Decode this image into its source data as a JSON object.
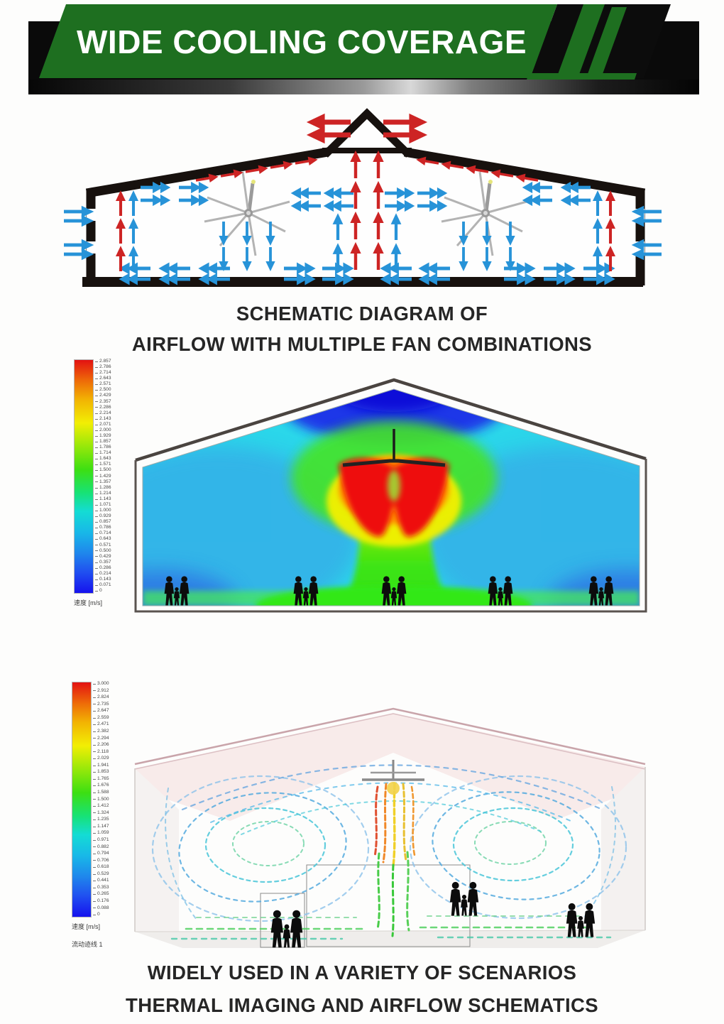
{
  "header": {
    "title": "WIDE COOLING COVERAGE"
  },
  "colors": {
    "green": "#1e6f20",
    "banner": "#0a0a0a",
    "warm": "#cd2424",
    "cool": "#2793d8",
    "caption": "#262626"
  },
  "captions": {
    "schematic_line1": "SCHEMATIC DIAGRAM OF",
    "schematic_line2": "AIRFLOW WITH MULTIPLE FAN COMBINATIONS",
    "footer_line1": "WIDELY USED IN A VARIETY OF SCENARIOS",
    "footer_line2": "THERMAL IMAGING AND AIRFLOW SCHEMATICS"
  },
  "cfd_thermal": {
    "description": "velocity contour plot of single HVLS fan in gabled building with people silhouettes",
    "legend": {
      "title": "速度 [m/s]",
      "unit": "m/s",
      "max": 2.857,
      "min": 0,
      "ticks": [
        "2.857",
        "2.786",
        "2.714",
        "2.643",
        "2.571",
        "2.500",
        "2.429",
        "2.357",
        "2.286",
        "2.214",
        "2.143",
        "2.071",
        "2.000",
        "1.929",
        "1.857",
        "1.786",
        "1.714",
        "1.643",
        "1.571",
        "1.500",
        "1.429",
        "1.357",
        "1.286",
        "1.214",
        "1.143",
        "1.071",
        "1.000",
        "0.929",
        "0.857",
        "0.786",
        "0.714",
        "0.643",
        "0.571",
        "0.500",
        "0.429",
        "0.357",
        "0.286",
        "0.214",
        "0.143",
        "0.071",
        "0"
      ]
    }
  },
  "cfd_streamline": {
    "description": "3D flow trajectory streamlines of HVLS fan in room with people silhouettes",
    "legend": {
      "title": "速度 [m/s]",
      "subtitle": "流动迹线 1",
      "unit": "m/s",
      "max": 3.0,
      "min": 0,
      "ticks": [
        "3.000",
        "2.912",
        "2.824",
        "2.735",
        "2.647",
        "2.559",
        "2.471",
        "2.382",
        "2.294",
        "2.206",
        "2.118",
        "2.029",
        "1.941",
        "1.853",
        "1.765",
        "1.676",
        "1.588",
        "1.500",
        "1.412",
        "1.324",
        "1.235",
        "1.147",
        "1.059",
        "0.971",
        "0.882",
        "0.794",
        "0.706",
        "0.618",
        "0.529",
        "0.441",
        "0.353",
        "0.265",
        "0.176",
        "0.088",
        "0"
      ]
    }
  }
}
